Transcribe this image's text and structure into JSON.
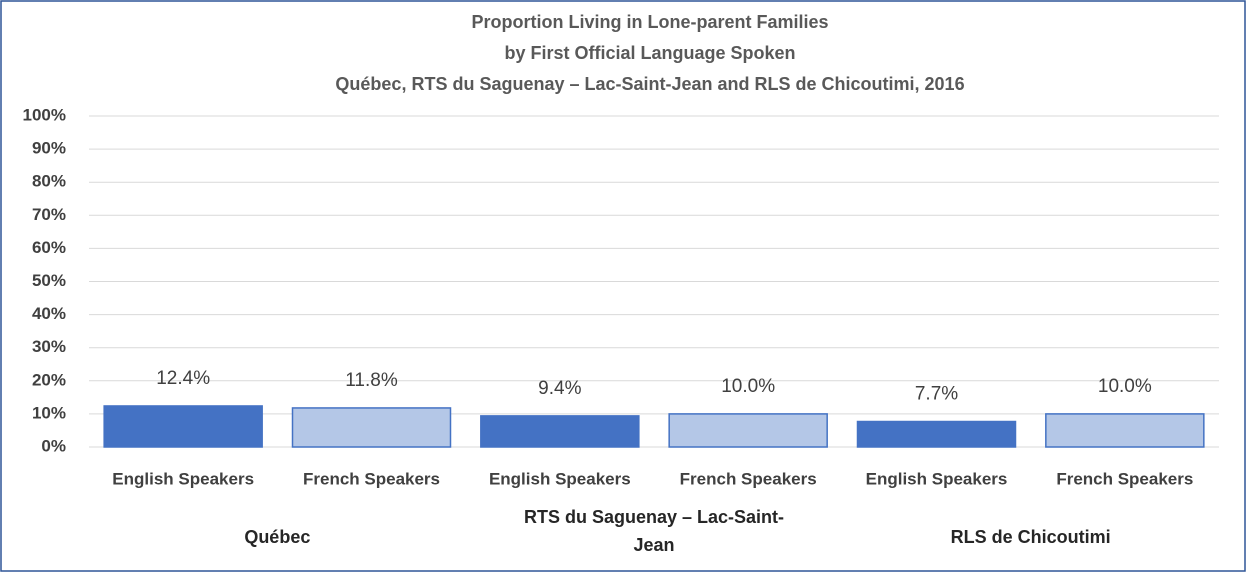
{
  "chart_data": {
    "type": "bar",
    "title": [
      "Proportion Living in Lone-parent Families",
      "by First Official Language Spoken",
      "Québec, RTS du Saguenay – Lac-Saint-Jean  and RLS de Chicoutimi, 2016"
    ],
    "categories": [
      "English Speakers",
      "French Speakers",
      "English Speakers",
      "French Speakers",
      "English Speakers",
      "French Speakers"
    ],
    "groups": [
      "Québec",
      "RTS du Saguenay – Lac-Saint-Jean",
      "RLS de Chicoutimi"
    ],
    "values": [
      12.4,
      11.8,
      9.4,
      10.0,
      7.7,
      10.0
    ],
    "value_labels": [
      "12.4%",
      "11.8%",
      "9.4%",
      "10.0%",
      "7.7%",
      "10.0%"
    ],
    "colors": [
      "#4472c4",
      "#b4c7e7",
      "#4472c4",
      "#b4c7e7",
      "#4472c4",
      "#b4c7e7"
    ],
    "ylim": [
      0,
      100
    ],
    "yticks": [
      {
        "value": 0,
        "label": "0%"
      },
      {
        "value": 10,
        "label": "10%"
      },
      {
        "value": 20,
        "label": "20%"
      },
      {
        "value": 30,
        "label": "30%"
      },
      {
        "value": 40,
        "label": "40%"
      },
      {
        "value": 50,
        "label": "50%"
      },
      {
        "value": 60,
        "label": "60%"
      },
      {
        "value": 70,
        "label": "70%"
      },
      {
        "value": 80,
        "label": "80%"
      },
      {
        "value": 90,
        "label": "90%"
      },
      {
        "value": 100,
        "label": "100%"
      }
    ],
    "grid": true
  }
}
